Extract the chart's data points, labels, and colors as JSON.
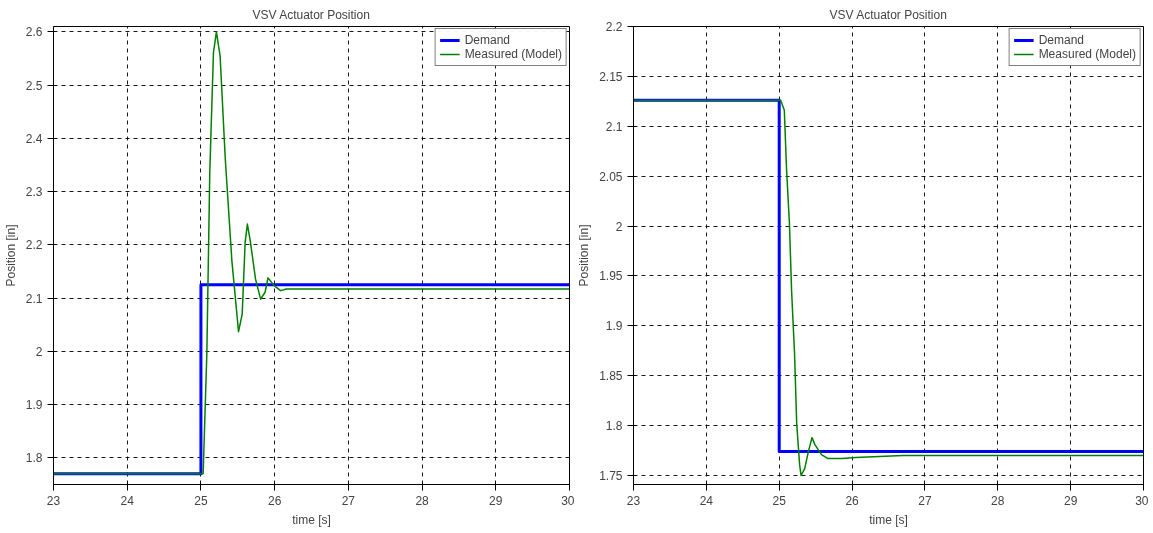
{
  "chart_data": [
    {
      "type": "line",
      "title": "VSV Actuator Position",
      "xlabel": "time [s]",
      "ylabel": "Position [in]",
      "xlim": [
        23,
        30
      ],
      "ylim": [
        1.75,
        2.61
      ],
      "xticks": [
        23,
        24,
        25,
        26,
        27,
        28,
        29,
        30
      ],
      "yticks": [
        1.8,
        1.9,
        2,
        2.1,
        2.2,
        2.3,
        2.4,
        2.5,
        2.6
      ],
      "grid": true,
      "legend": "top right",
      "line_style": "solid",
      "marker": "none",
      "series": [
        {
          "name": "Demand",
          "color": "#0000ff",
          "x": [
            23,
            25,
            25,
            30
          ],
          "values": [
            1.77,
            1.77,
            2.125,
            2.125
          ]
        },
        {
          "name": "Measured (Model)",
          "color": "#008000",
          "x": [
            23,
            25.03,
            25.08,
            25.12,
            25.17,
            25.21,
            25.26,
            25.33,
            25.42,
            25.51,
            25.56,
            25.6,
            25.63,
            25.67,
            25.74,
            25.81,
            25.87,
            25.91,
            25.99,
            26.08,
            26.16,
            30
          ],
          "values": [
            1.77,
            1.77,
            1.995,
            2.336,
            2.561,
            2.6,
            2.555,
            2.362,
            2.17,
            2.037,
            2.07,
            2.205,
            2.239,
            2.207,
            2.136,
            2.098,
            2.111,
            2.138,
            2.124,
            2.114,
            2.117,
            2.117
          ]
        }
      ]
    },
    {
      "type": "line",
      "title": "VSV Actuator Position",
      "xlabel": "time [s]",
      "ylabel": "Position [in]",
      "xlim": [
        23,
        30
      ],
      "ylim": [
        1.741,
        2.2
      ],
      "xticks": [
        23,
        24,
        25,
        26,
        27,
        28,
        29,
        30
      ],
      "yticks": [
        1.75,
        1.8,
        1.85,
        1.9,
        1.95,
        2,
        2.05,
        2.1,
        2.15,
        2.2
      ],
      "grid": true,
      "legend": "top right",
      "line_style": "solid",
      "marker": "none",
      "series": [
        {
          "name": "Demand",
          "color": "#0000ff",
          "x": [
            23,
            25,
            25,
            30
          ],
          "values": [
            2.126,
            2.126,
            1.774,
            1.774
          ]
        },
        {
          "name": "Measured (Model)",
          "color": "#008000",
          "x": [
            23,
            25.02,
            25.07,
            25.1,
            25.14,
            25.17,
            25.21,
            25.24,
            25.28,
            25.3,
            25.35,
            25.4,
            25.45,
            25.49,
            25.58,
            25.67,
            25.86,
            26.05,
            26.7,
            30
          ],
          "values": [
            2.126,
            2.126,
            2.116,
            2.058,
            2.003,
            1.935,
            1.873,
            1.802,
            1.761,
            1.75,
            1.757,
            1.774,
            1.788,
            1.781,
            1.771,
            1.767,
            1.767,
            1.768,
            1.77,
            1.77
          ]
        }
      ]
    }
  ]
}
